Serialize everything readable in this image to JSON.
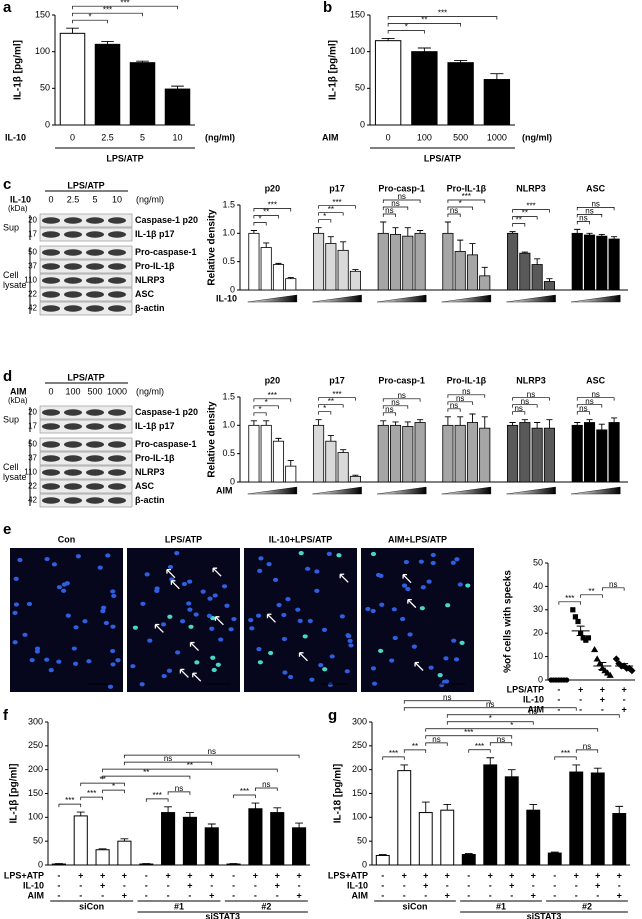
{
  "chart_data": [
    {
      "panel": "a",
      "type": "bar",
      "y_label": "IL-1β [pg/ml]",
      "factor": "IL-10",
      "categories": [
        "0",
        "2.5",
        "5",
        "10"
      ],
      "unit": "(ng/ml)",
      "group_label": "LPS/ATP",
      "values": [
        125,
        110,
        85,
        49
      ],
      "errors": [
        7,
        4,
        2,
        4
      ],
      "colors": [
        "#ffffff",
        "#000000",
        "#000000",
        "#000000"
      ],
      "ylim": [
        0,
        150
      ],
      "yticks": [
        0,
        50,
        100,
        150
      ],
      "brackets": [
        [
          0,
          1,
          "*"
        ],
        [
          0,
          2,
          "***"
        ],
        [
          0,
          3,
          "***"
        ]
      ]
    },
    {
      "panel": "b",
      "type": "bar",
      "y_label": "IL-1β [pg/ml]",
      "factor": "AIM",
      "categories": [
        "0",
        "100",
        "500",
        "1000"
      ],
      "unit": "(ng/ml)",
      "group_label": "LPS/ATP",
      "values": [
        115,
        100,
        85,
        62
      ],
      "errors": [
        3,
        5,
        3,
        8
      ],
      "colors": [
        "#ffffff",
        "#000000",
        "#000000",
        "#000000"
      ],
      "ylim": [
        0,
        150
      ],
      "yticks": [
        0,
        50,
        100,
        150
      ],
      "brackets": [
        [
          0,
          1,
          "*"
        ],
        [
          0,
          2,
          "**"
        ],
        [
          0,
          3,
          "***"
        ]
      ]
    },
    {
      "type": "group_bar",
      "y_label": "Relative density",
      "factor": "IL-10",
      "ylim": [
        0,
        1.5
      ],
      "yticks": [
        0,
        0.5,
        {
          "value": 1,
          "label": "1.0"
        },
        1.5
      ],
      "groups": [
        {
          "name": "p20",
          "color": "#ffffff",
          "values": [
            1,
            0.75,
            0.45,
            0.2
          ],
          "errors": [
            0.05,
            0.08,
            0.02,
            0.02
          ],
          "brackets": [
            [
              0,
              1,
              "*"
            ],
            [
              0,
              2,
              "**"
            ],
            [
              0,
              3,
              "***"
            ]
          ]
        },
        {
          "name": "p17",
          "color": "#d9d9d9",
          "values": [
            1,
            0.82,
            0.7,
            0.33
          ],
          "errors": [
            0.1,
            0.12,
            0.15,
            0.03
          ],
          "brackets": [
            [
              0,
              1,
              "*"
            ],
            [
              0,
              2,
              "**"
            ],
            [
              0,
              3,
              "***"
            ]
          ]
        },
        {
          "name": "Pro-casp-1",
          "color": "#a6a6a6",
          "values": [
            1,
            0.98,
            0.95,
            1
          ],
          "errors": [
            0.2,
            0.12,
            0.15,
            0.05
          ],
          "brackets": [
            [
              0,
              1,
              "ns"
            ],
            [
              0,
              2,
              "ns"
            ],
            [
              0,
              3,
              "ns"
            ]
          ]
        },
        {
          "name": "Pro-IL-1β",
          "color": "#a6a6a6",
          "values": [
            1,
            0.68,
            0.62,
            0.25
          ],
          "errors": [
            0.2,
            0.2,
            0.2,
            0.15
          ],
          "brackets": [
            [
              0,
              1,
              "ns"
            ],
            [
              0,
              2,
              "*"
            ],
            [
              0,
              3,
              "***"
            ]
          ]
        },
        {
          "name": "NLRP3",
          "color": "#595959",
          "values": [
            1,
            0.65,
            0.45,
            0.15
          ],
          "errors": [
            0.03,
            0.02,
            0.1,
            0.05
          ],
          "brackets": [
            [
              0,
              1,
              "**"
            ],
            [
              0,
              2,
              "**"
            ],
            [
              0,
              3,
              "***"
            ]
          ]
        },
        {
          "name": "ASC",
          "color": "#000000",
          "values": [
            1,
            0.97,
            0.95,
            0.9
          ],
          "errors": [
            0.07,
            0.03,
            0.03,
            0.04
          ],
          "brackets": [
            [
              0,
              1,
              "ns"
            ],
            [
              0,
              2,
              "ns"
            ],
            [
              0,
              3,
              "ns"
            ]
          ]
        }
      ]
    },
    {
      "type": "group_bar",
      "y_label": "Relative density",
      "factor": "AIM",
      "ylim": [
        0,
        1.5
      ],
      "yticks": [
        0,
        0.5,
        {
          "value": 1,
          "label": "1.0"
        },
        1.5
      ],
      "groups": [
        {
          "name": "p20",
          "color": "#ffffff",
          "values": [
            1,
            1,
            0.72,
            0.28
          ],
          "errors": [
            0.08,
            0.08,
            0.05,
            0.1
          ],
          "brackets": [
            [
              0,
              1,
              "*"
            ],
            [
              0,
              2,
              "*"
            ],
            [
              0,
              3,
              "***"
            ]
          ]
        },
        {
          "name": "p17",
          "color": "#d9d9d9",
          "values": [
            1,
            0.72,
            0.52,
            0.1
          ],
          "errors": [
            0.1,
            0.1,
            0.05,
            0.02
          ],
          "brackets": [
            [
              0,
              1,
              "*"
            ],
            [
              0,
              2,
              "**"
            ],
            [
              0,
              3,
              "***"
            ]
          ]
        },
        {
          "name": "Pro-casp-1",
          "color": "#a6a6a6",
          "values": [
            1,
            1,
            0.98,
            1.05
          ],
          "errors": [
            0.08,
            0.06,
            0.08,
            0.05
          ],
          "brackets": [
            [
              0,
              1,
              "ns"
            ],
            [
              0,
              2,
              "ns"
            ],
            [
              0,
              3,
              "ns"
            ]
          ]
        },
        {
          "name": "Pro-IL-1β",
          "color": "#a6a6a6",
          "values": [
            1,
            1,
            1.05,
            0.95
          ],
          "errors": [
            0.15,
            0.15,
            0.15,
            0.2
          ],
          "brackets": [
            [
              0,
              1,
              "ns"
            ],
            [
              0,
              2,
              "ns"
            ],
            [
              0,
              3,
              "ns"
            ]
          ]
        },
        {
          "name": "NLRP3",
          "color": "#595959",
          "values": [
            1,
            1.05,
            0.95,
            0.95
          ],
          "errors": [
            0.05,
            0.05,
            0.1,
            0.15
          ],
          "brackets": [
            [
              0,
              1,
              "ns"
            ],
            [
              0,
              2,
              "ns"
            ],
            [
              0,
              3,
              "ns"
            ]
          ]
        },
        {
          "name": "ASC",
          "color": "#000000",
          "values": [
            1,
            1.05,
            0.92,
            1.05
          ],
          "errors": [
            0.05,
            0.05,
            0.1,
            0.08
          ],
          "brackets": [
            [
              0,
              1,
              "ns"
            ],
            [
              0,
              2,
              "ns"
            ],
            [
              0,
              3,
              "ns"
            ]
          ]
        }
      ]
    },
    {
      "panel": "e",
      "type": "dot_plot",
      "y_label": "%of cells with specks",
      "ylim": [
        0,
        50
      ],
      "yticks": [
        0,
        10,
        20,
        30,
        40,
        50
      ],
      "groups": [
        {
          "marker": "circle",
          "color": "#000000",
          "points": [
            0,
            0,
            0,
            0,
            0,
            0,
            0
          ],
          "mean": 0,
          "sem": 0
        },
        {
          "marker": "square",
          "color": "#000000",
          "points": [
            30,
            27,
            25,
            20,
            18,
            17,
            18
          ],
          "mean": 21,
          "sem": 2
        },
        {
          "marker": "triangle",
          "color": "#000000",
          "points": [
            13,
            9,
            7,
            5,
            4,
            3,
            2
          ],
          "mean": 6,
          "sem": 1.5
        },
        {
          "marker": "diamond",
          "color": "#000000",
          "points": [
            9,
            7,
            6,
            6,
            5,
            5,
            4
          ],
          "mean": 6,
          "sem": 1
        }
      ],
      "brackets": [
        [
          0,
          1,
          "***"
        ],
        [
          1,
          2,
          "**"
        ],
        [
          2,
          3,
          "ns"
        ]
      ],
      "rows": [
        {
          "label": "LPS/ATP",
          "signs": [
            "-",
            "+",
            "+",
            "+"
          ]
        },
        {
          "label": "IL-10",
          "signs": [
            "-",
            "-",
            "+",
            "-"
          ]
        },
        {
          "label": "AIM",
          "signs": [
            "-",
            "-",
            "-",
            "+"
          ]
        }
      ]
    },
    {
      "panel": "f",
      "type": "bar",
      "y_label": "IL-1β [pg/ml]",
      "values": [
        2,
        103,
        32,
        50,
        2,
        110,
        100,
        78,
        2,
        118,
        110,
        78
      ],
      "errors": [
        1,
        8,
        2,
        5,
        1,
        12,
        10,
        8,
        1,
        12,
        10,
        10
      ],
      "colors": [
        "#ffffff",
        "#ffffff",
        "#ffffff",
        "#ffffff",
        "#000000",
        "#000000",
        "#000000",
        "#000000",
        "#000000",
        "#000000",
        "#000000",
        "#000000"
      ],
      "ylim": [
        0,
        300
      ],
      "yticks": [
        0,
        50,
        100,
        150,
        200,
        250,
        300
      ],
      "brackets": [
        [
          0,
          1,
          "***"
        ],
        [
          1,
          2,
          "***"
        ],
        [
          2,
          3,
          "*"
        ],
        [
          1,
          3,
          "**"
        ],
        [
          4,
          5,
          "***"
        ],
        [
          5,
          6,
          "ns"
        ],
        [
          8,
          9,
          "***"
        ],
        [
          9,
          10,
          "ns"
        ],
        [
          2,
          6,
          "**"
        ],
        [
          2,
          10,
          "**"
        ],
        [
          3,
          7,
          "ns"
        ],
        [
          3,
          11,
          "ns"
        ]
      ],
      "rows": [
        {
          "label": "LPS+ATP",
          "signs": [
            "-",
            "+",
            "+",
            "+",
            "-",
            "+",
            "+",
            "+",
            "-",
            "+",
            "+",
            "+"
          ]
        },
        {
          "label": "IL-10",
          "signs": [
            "-",
            "-",
            "+",
            "-",
            "-",
            "-",
            "+",
            "-",
            "-",
            "-",
            "+",
            "-"
          ]
        },
        {
          "label": "AIM",
          "signs": [
            "-",
            "-",
            "-",
            "+",
            "-",
            "-",
            "-",
            "+",
            "-",
            "-",
            "-",
            "+"
          ]
        }
      ],
      "group_labels": [
        "siCon",
        "#1",
        "#2"
      ],
      "super_label": "siSTAT3"
    },
    {
      "panel": "g",
      "type": "bar",
      "y_label": "IL-18 [pg/ml]",
      "values": [
        20,
        198,
        110,
        115,
        22,
        210,
        185,
        115,
        25,
        195,
        193,
        108
      ],
      "errors": [
        2,
        12,
        22,
        12,
        2,
        15,
        15,
        12,
        2,
        15,
        10,
        15
      ],
      "colors": [
        "#ffffff",
        "#ffffff",
        "#ffffff",
        "#ffffff",
        "#000000",
        "#000000",
        "#000000",
        "#000000",
        "#000000",
        "#000000",
        "#000000",
        "#000000"
      ],
      "ylim": [
        0,
        300
      ],
      "yticks": [
        0,
        50,
        100,
        150,
        200,
        250,
        300
      ],
      "brackets": [
        [
          0,
          1,
          "***"
        ],
        [
          1,
          2,
          "**"
        ],
        [
          2,
          3,
          "ns"
        ],
        [
          4,
          5,
          "***"
        ],
        [
          5,
          6,
          "ns"
        ],
        [
          8,
          9,
          "***"
        ],
        [
          9,
          10,
          "ns"
        ],
        [
          2,
          6,
          "***"
        ],
        [
          2,
          10,
          "*"
        ],
        [
          3,
          7,
          "*"
        ],
        [
          3,
          11,
          "ns"
        ],
        [
          1,
          9,
          "ns"
        ],
        [
          1,
          5,
          "ns"
        ]
      ],
      "rows": [
        {
          "label": "LPS+ATP",
          "signs": [
            "-",
            "+",
            "+",
            "+",
            "-",
            "+",
            "+",
            "+",
            "-",
            "+",
            "+",
            "+"
          ]
        },
        {
          "label": "IL-10",
          "signs": [
            "-",
            "-",
            "+",
            "-",
            "-",
            "-",
            "+",
            "-",
            "-",
            "-",
            "+",
            "-"
          ]
        },
        {
          "label": "AIM",
          "signs": [
            "-",
            "-",
            "-",
            "+",
            "-",
            "-",
            "-",
            "+",
            "-",
            "-",
            "-",
            "+"
          ]
        }
      ],
      "group_labels": [
        "siCon",
        "#1",
        "#2"
      ],
      "super_label": "siSTAT3"
    }
  ],
  "blots": [
    {
      "panel": "c",
      "treatment": "LPS/ATP",
      "factor": "IL-10",
      "doses": [
        "0",
        "2.5",
        "5",
        "10"
      ],
      "unit": "(ng/ml)",
      "kda_title": "(kDa)",
      "sections": [
        {
          "label": "Sup",
          "bands": [
            {
              "kda": 20,
              "name": "Caspase-1 p20"
            },
            {
              "kda": 17,
              "name": "IL-1β p17"
            }
          ]
        },
        {
          "label": "Cell lysate",
          "bands": [
            {
              "kda": 50,
              "name": "Pro-caspase-1"
            },
            {
              "kda": 37,
              "name": "Pro-IL-1β"
            },
            {
              "kda": 110,
              "name": "NLRP3"
            },
            {
              "kda": 22,
              "name": "ASC"
            },
            {
              "kda": 42,
              "name": "β-actin"
            }
          ]
        }
      ]
    },
    {
      "panel": "d",
      "treatment": "LPS/ATP",
      "factor": "AIM",
      "doses": [
        "0",
        "100",
        "500",
        "1000"
      ],
      "unit": "(ng/ml)",
      "kda_title": "(kDa)",
      "sections": [
        {
          "label": "Sup",
          "bands": [
            {
              "kda": 20,
              "name": "Caspase-1 p20"
            },
            {
              "kda": 17,
              "name": "IL-1β p17"
            }
          ]
        },
        {
          "label": "Cell lysate",
          "bands": [
            {
              "kda": 50,
              "name": "Pro-caspase-1"
            },
            {
              "kda": 37,
              "name": "Pro-IL-1β"
            },
            {
              "kda": 110,
              "name": "NLRP3"
            },
            {
              "kda": 22,
              "name": "ASC"
            },
            {
              "kda": 42,
              "name": "β-actin"
            }
          ]
        }
      ]
    }
  ],
  "images": {
    "labels": [
      "Con",
      "LPS/ATP",
      "IL-10+LPS/ATP",
      "AIM+LPS/ATP"
    ]
  }
}
